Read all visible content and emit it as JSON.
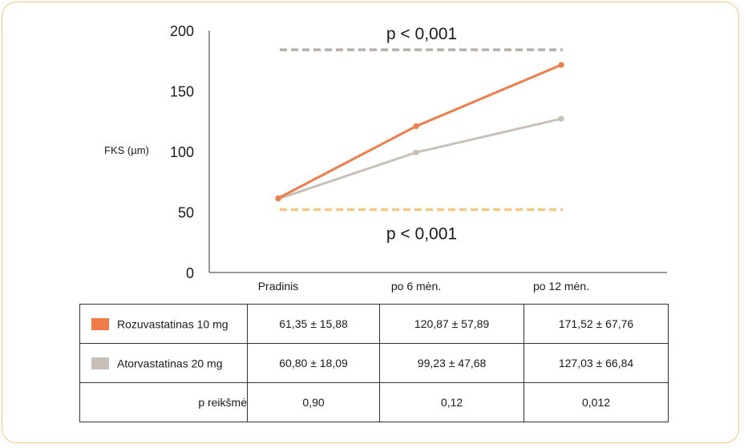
{
  "chart_data": {
    "type": "line",
    "ylabel": "FKS (µm)",
    "ylim": [
      0,
      200
    ],
    "yticks": [
      "0",
      "50",
      "100",
      "150",
      "200"
    ],
    "categories": [
      "Pradinis",
      "po 6 mėn.",
      "po 12 mėn."
    ],
    "series": [
      {
        "name": "Rozuvastatinas 10 mg",
        "color": "#f07c4a",
        "values": [
          61.35,
          120.87,
          171.52
        ]
      },
      {
        "name": "Atorvastatinas 20 mg",
        "color": "#c8c0b8",
        "values": [
          60.8,
          99.23,
          127.03
        ]
      }
    ],
    "reference_lines": [
      {
        "value": 184,
        "color": "#b8b0a8",
        "label": "p < 0,001"
      },
      {
        "value": 52,
        "color": "#f3c983",
        "label": "p < 0,001"
      }
    ]
  },
  "table": {
    "rows": [
      {
        "label": "Rozuvastatinas 10 mg",
        "swatch": "#f07c4a",
        "cells": [
          "61,35 ± 15,88",
          "120,87 ± 57,89",
          "171,52 ± 67,76"
        ]
      },
      {
        "label": "Atorvastatinas 20 mg",
        "swatch": "#c8c0b8",
        "cells": [
          "60,80 ± 18,09",
          "99,23 ± 47,68",
          "127,03 ± 66,84"
        ]
      },
      {
        "label": "p reikšmė",
        "swatch": "",
        "cells": [
          "0,90",
          "0,12",
          "0,012"
        ]
      }
    ]
  }
}
